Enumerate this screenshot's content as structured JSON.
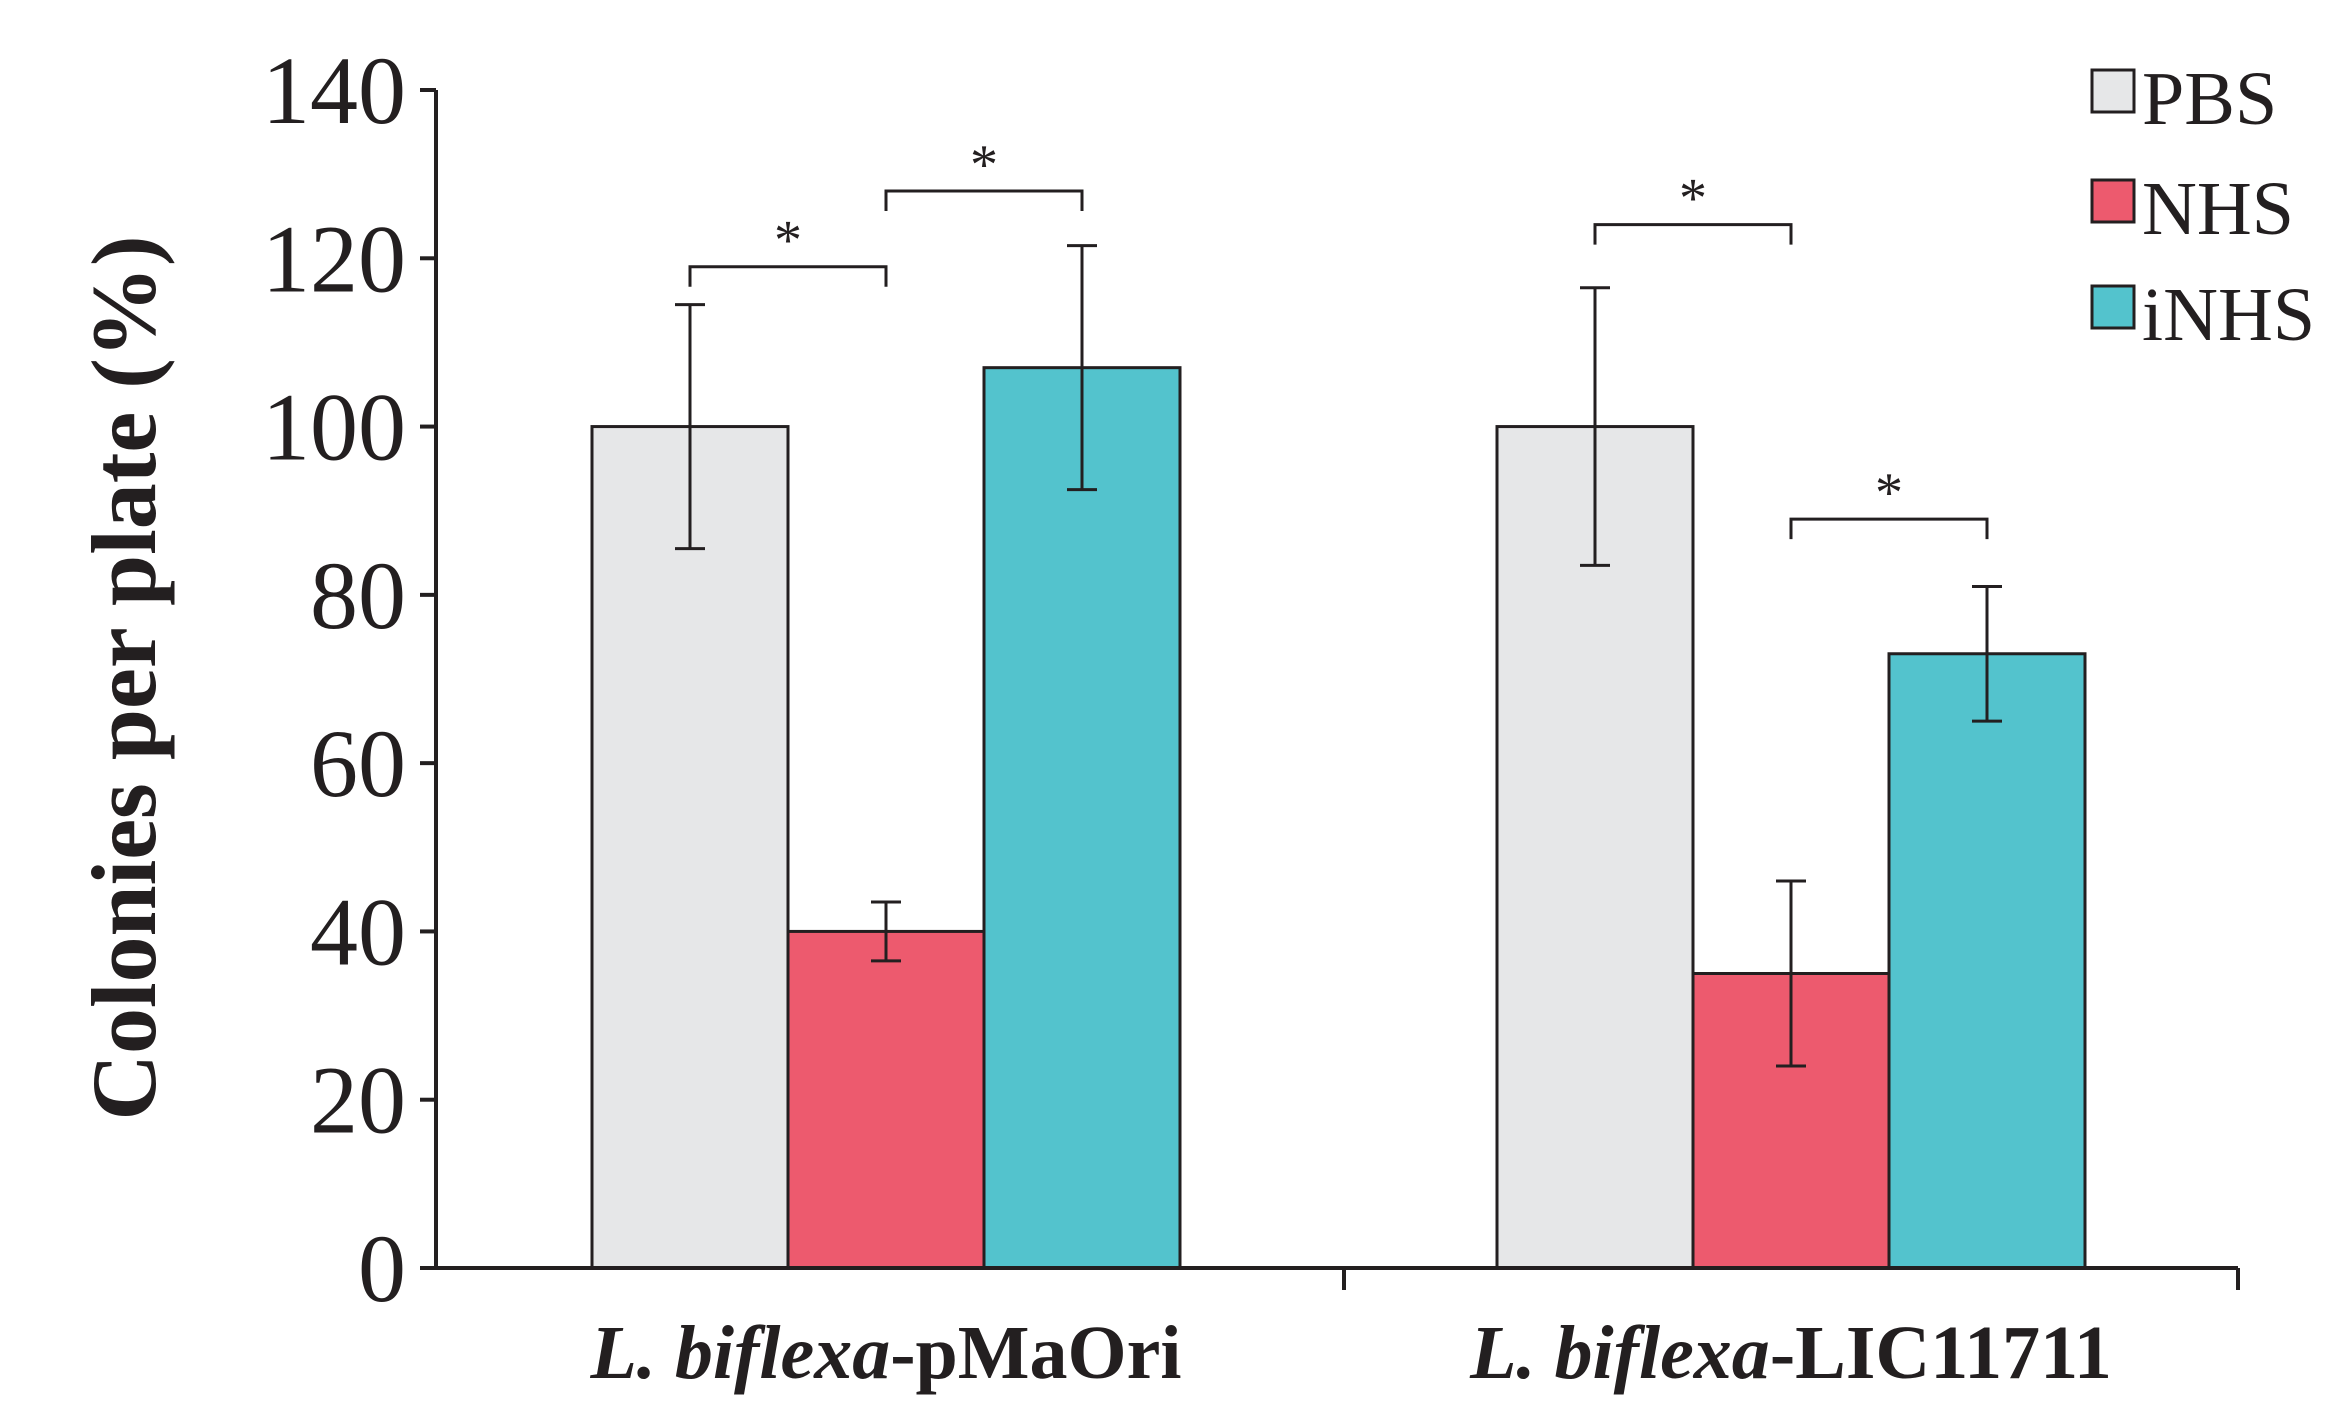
{
  "chart_data": {
    "type": "bar",
    "title": "",
    "xlabel": "",
    "ylabel": "Colonies per plate (%)",
    "ylim": [
      0,
      140
    ],
    "yticks": [
      0,
      20,
      40,
      60,
      80,
      100,
      120,
      140
    ],
    "grid": false,
    "legend_position": "top-right",
    "categories": [
      {
        "italic": "L. biflexa",
        "suffix": "-pMaOri"
      },
      {
        "italic": "L. biflexa",
        "suffix": "-LIC11711"
      }
    ],
    "series": [
      {
        "name": "PBS",
        "color": "#e6e7e8",
        "values": [
          100,
          100
        ],
        "errors": [
          14.5,
          16.5
        ]
      },
      {
        "name": "NHS",
        "color": "#ed5a6e",
        "values": [
          40,
          35
        ],
        "errors": [
          3.5,
          11
        ]
      },
      {
        "name": "iNHS",
        "color": "#53c3cd",
        "values": [
          107,
          73
        ],
        "errors": [
          14.5,
          8
        ]
      }
    ],
    "significance": [
      {
        "group": 0,
        "from": 0,
        "to": 1,
        "label": "*",
        "y": 119
      },
      {
        "group": 0,
        "from": 1,
        "to": 2,
        "label": "*",
        "y": 128
      },
      {
        "group": 1,
        "from": 0,
        "to": 1,
        "label": "*",
        "y": 124
      },
      {
        "group": 1,
        "from": 1,
        "to": 2,
        "label": "*",
        "y": 89
      }
    ]
  }
}
